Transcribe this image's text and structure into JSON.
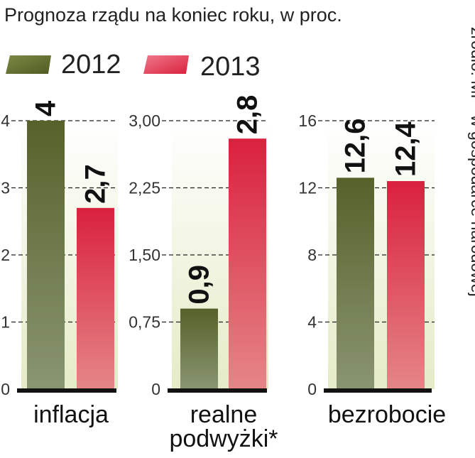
{
  "chart_data": {
    "type": "bar",
    "title": "Prognoza rządu na koniec roku, w proc.",
    "source": "źródło: MF* w gospodarce narodowej",
    "legend": {
      "position": "top-left"
    },
    "series": [
      {
        "name": "2012",
        "color": "#6b7a35"
      },
      {
        "name": "2013",
        "color": "#e0384e"
      }
    ],
    "panels": [
      {
        "category": "inflacja",
        "values": [
          4,
          2.7
        ],
        "value_labels": [
          "4",
          "2,7"
        ],
        "ylim": [
          0,
          4
        ],
        "ticks": [
          "0",
          "1",
          "2",
          "3",
          "4"
        ]
      },
      {
        "category": "realne podwyżki*",
        "category_lines": [
          "realne",
          "podwyżki*"
        ],
        "values": [
          0.9,
          2.8
        ],
        "value_labels": [
          "0,9",
          "2,8"
        ],
        "ylim": [
          0,
          3
        ],
        "ticks": [
          "0",
          "0,75",
          "1,50",
          "2,25",
          "3,00"
        ]
      },
      {
        "category": "bezrobocie",
        "values": [
          12.6,
          12.4
        ],
        "value_labels": [
          "12,6",
          "12,4"
        ],
        "ylim": [
          0,
          16
        ],
        "ticks": [
          "0",
          "4",
          "8",
          "12",
          "16"
        ]
      }
    ],
    "grid": true
  }
}
